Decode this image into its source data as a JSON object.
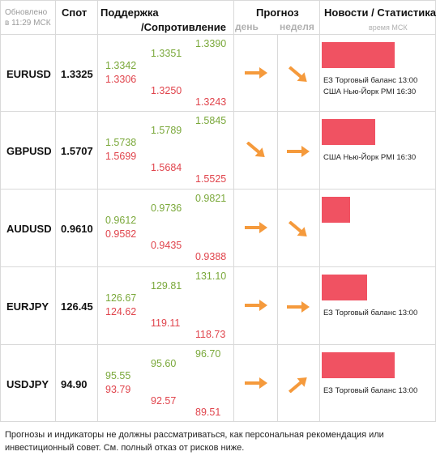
{
  "header": {
    "updated_line1": "Обновлено",
    "updated_line2": "в 11:29 МСК",
    "spot": "Спот",
    "support": "Поддержка",
    "resistance": "/Сопротивление",
    "forecast": "Прогноз",
    "day": "день",
    "week": "неделя",
    "news": "Новости / Статистика",
    "time_msk": "время МСК"
  },
  "colors": {
    "green": "#7aa83a",
    "red": "#e0444c",
    "arrow": "#f59a3c",
    "bar": "#f05262"
  },
  "rows": [
    {
      "pair": "EURUSD",
      "spot": "1.3325",
      "s1_g": "1.3342",
      "s1_r": "1.3306",
      "s2_g": "1.3351",
      "s2_r": "1.3250",
      "s3_g": "1.3390",
      "s3_r": "1.3243",
      "day": "arrow-right-icon",
      "week": "arrow-down-right-icon",
      "news": [
        "ЕЗ Торговый баланс 13:00",
        "США Нью-Йорк PMI 16:30"
      ]
    },
    {
      "pair": "GBPUSD",
      "spot": "1.5707",
      "s1_g": "1.5738",
      "s1_r": "1.5699",
      "s2_g": "1.5789",
      "s2_r": "1.5684",
      "s3_g": "1.5845",
      "s3_r": "1.5525",
      "day": "arrow-down-right-icon",
      "week": "arrow-right-icon",
      "news": [
        "США Нью-Йорк PMI 16:30"
      ]
    },
    {
      "pair": "AUDUSD",
      "spot": "0.9610",
      "s1_g": "0.9612",
      "s1_r": "0.9582",
      "s2_g": "0.9736",
      "s2_r": "0.9435",
      "s3_g": "0.9821",
      "s3_r": "0.9388",
      "day": "arrow-right-icon",
      "week": "arrow-down-right-icon",
      "news": []
    },
    {
      "pair": "EURJPY",
      "spot": "126.45",
      "s1_g": "126.67",
      "s1_r": "124.62",
      "s2_g": "129.81",
      "s2_r": "119.11",
      "s3_g": "131.10",
      "s3_r": "118.73",
      "day": "arrow-right-icon",
      "week": "arrow-right-icon",
      "news": [
        "ЕЗ Торговый баланс 13:00"
      ]
    },
    {
      "pair": "USDJPY",
      "spot": "94.90",
      "s1_g": "95.55",
      "s1_r": "93.79",
      "s2_g": "95.60",
      "s2_r": "92.57",
      "s3_g": "96.70",
      "s3_r": "89.51",
      "day": "arrow-right-icon",
      "week": "arrow-up-right-icon",
      "news": [
        "ЕЗ Торговый баланс 13:00"
      ]
    }
  ],
  "footer": {
    "line1": "Прогнозы и индикаторы не должны рассматриваться, как персональная рекомендация или",
    "line2": "инвестиционный совет. См. полный отказ от рисков ниже."
  }
}
